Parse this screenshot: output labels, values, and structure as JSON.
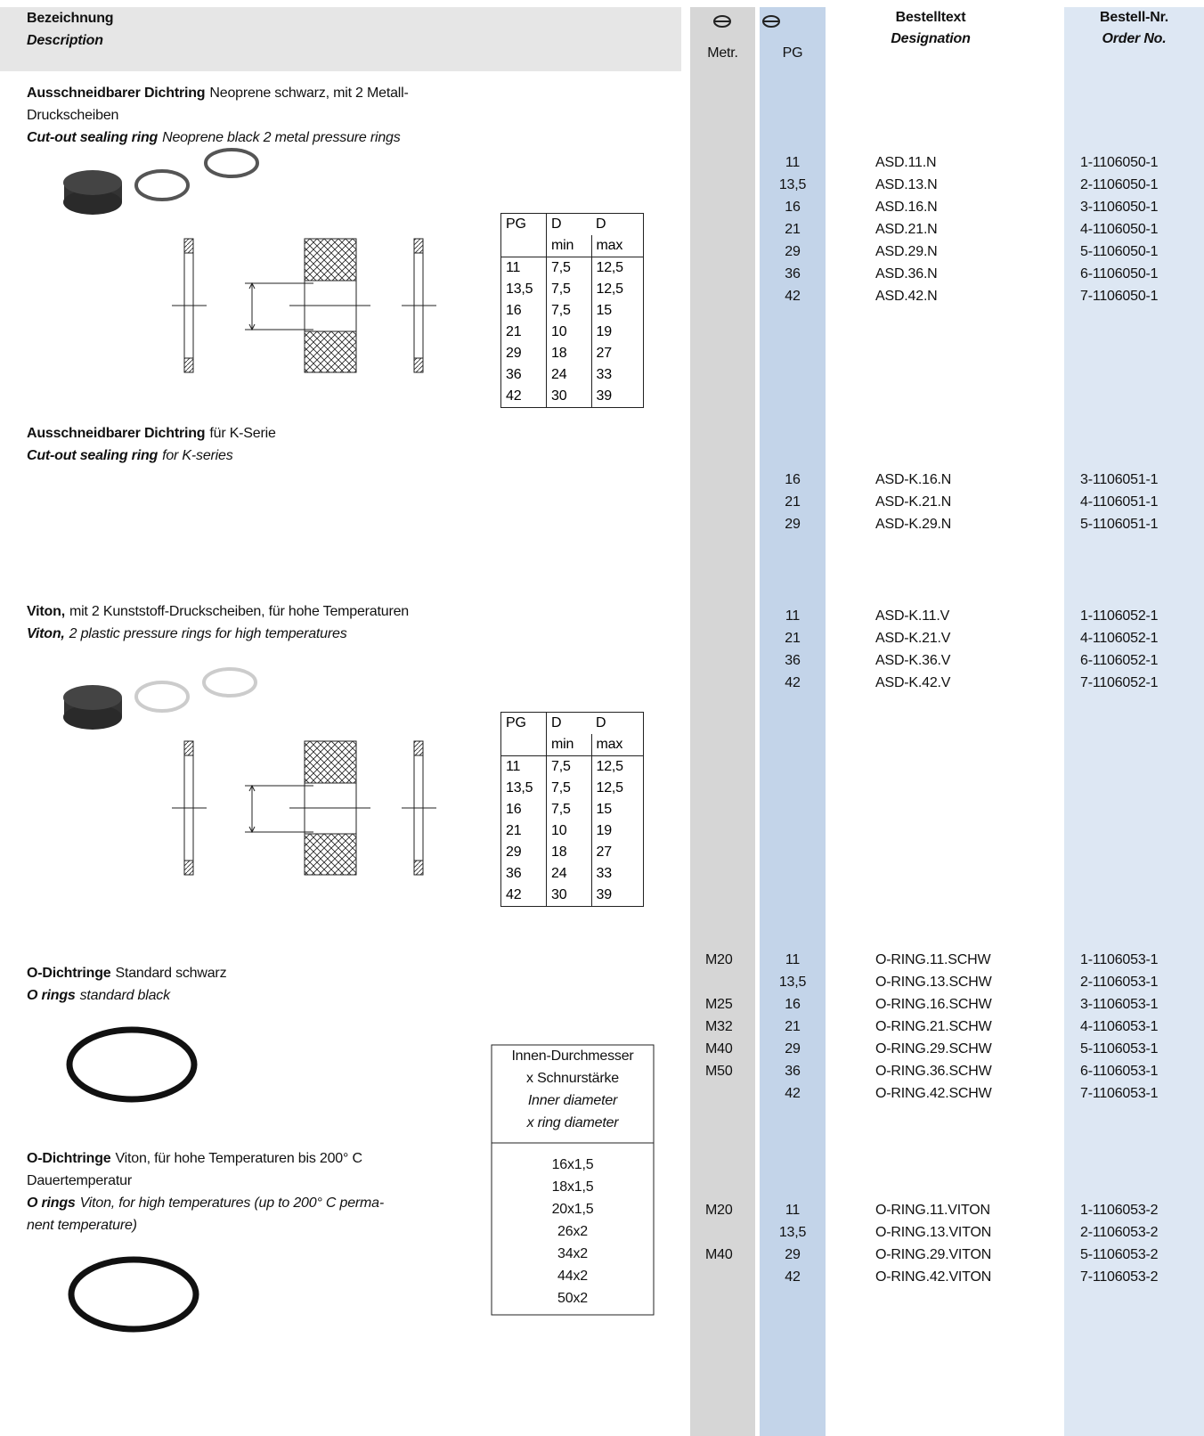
{
  "header": {
    "description_de": "Bezeichnung",
    "description_en": "Description",
    "metr": "Metr.",
    "pg": "PG",
    "designation_de": "Bestelltext",
    "designation_en": "Designation",
    "order_de": "Bestell-Nr.",
    "order_en": "Order No."
  },
  "sections": [
    {
      "title_de": {
        "bold": "Ausschneidbarer Dichtring",
        "lines": [
          "Neoprene schwarz, mit 2 Metall-Druckscheiben"
        ]
      },
      "title_en": {
        "bold": "Cut-out sealing ring",
        "lines": [
          "Neoprene black 2 metal pressure rings"
        ]
      },
      "rows": [
        {
          "metr": null,
          "pg": "11",
          "designation": "ASD.11.N",
          "order": "1-1106050-1"
        },
        {
          "metr": null,
          "pg": "13,5",
          "designation": "ASD.13.N",
          "order": "2-1106050-1"
        },
        {
          "metr": null,
          "pg": "16",
          "designation": "ASD.16.N",
          "order": "3-1106050-1"
        },
        {
          "metr": null,
          "pg": "21",
          "designation": "ASD.21.N",
          "order": "4-1106050-1"
        },
        {
          "metr": null,
          "pg": "29",
          "designation": "ASD.29.N",
          "order": "5-1106050-1"
        },
        {
          "metr": null,
          "pg": "36",
          "designation": "ASD.36.N",
          "order": "6-1106050-1"
        },
        {
          "metr": null,
          "pg": "42",
          "designation": "ASD.42.N",
          "order": "7-1106050-1"
        }
      ],
      "dimension_table": {
        "header": [
          "PG",
          "D",
          "D"
        ],
        "subheader": [
          "min",
          "max"
        ],
        "rows": [
          [
            "11",
            "7,5",
            "12,5"
          ],
          [
            "13,5",
            "7,5",
            "12,5"
          ],
          [
            "16",
            "7,5",
            "15"
          ],
          [
            "21",
            "10",
            "19"
          ],
          [
            "29",
            "18",
            "27"
          ],
          [
            "36",
            "24",
            "33"
          ],
          [
            "42",
            "30",
            "39"
          ]
        ]
      }
    },
    {
      "title_de": {
        "bold": "Ausschneidbarer Dichtring",
        "lines": [
          "für K-Serie"
        ]
      },
      "title_en": {
        "bold": "Cut-out sealing ring",
        "lines": [
          "for K-series"
        ]
      },
      "rows": [
        {
          "metr": null,
          "pg": "16",
          "designation": "ASD-K.16.N",
          "order": "3-1106051-1"
        },
        {
          "metr": null,
          "pg": "21",
          "designation": "ASD-K.21.N",
          "order": "4-1106051-1"
        },
        {
          "metr": null,
          "pg": "29",
          "designation": "ASD-K.29.N",
          "order": "5-1106051-1"
        }
      ]
    },
    {
      "title_de": {
        "bold": "Viton,",
        "lines": [
          "mit 2 Kunststoff-Druckscheiben, für hohe Temperaturen"
        ]
      },
      "title_en": {
        "bold": "Viton,",
        "lines": [
          "2 plastic pressure rings for high temperatures"
        ]
      },
      "rows": [
        {
          "metr": null,
          "pg": "11",
          "designation": "ASD-K.11.V",
          "order": "1-1106052-1"
        },
        {
          "metr": null,
          "pg": "21",
          "designation": "ASD-K.21.V",
          "order": "4-1106052-1"
        },
        {
          "metr": null,
          "pg": "36",
          "designation": "ASD-K.36.V",
          "order": "6-1106052-1"
        },
        {
          "metr": null,
          "pg": "42",
          "designation": "ASD-K.42.V",
          "order": "7-1106052-1"
        }
      ],
      "dimension_table": {
        "header": [
          "PG",
          "D",
          "D"
        ],
        "subheader": [
          "min",
          "max"
        ],
        "rows": [
          [
            "11",
            "7,5",
            "12,5"
          ],
          [
            "13,5",
            "7,5",
            "12,5"
          ],
          [
            "16",
            "7,5",
            "15"
          ],
          [
            "21",
            "10",
            "19"
          ],
          [
            "29",
            "18",
            "27"
          ],
          [
            "36",
            "24",
            "33"
          ],
          [
            "42",
            "30",
            "39"
          ]
        ]
      }
    },
    {
      "title_de": {
        "bold": "O-Dichtringe",
        "lines": [
          "Standard schwarz"
        ]
      },
      "title_en": {
        "bold": "O rings",
        "lines": [
          "standard black"
        ]
      },
      "rows": [
        {
          "metr": "M20",
          "pg": "11",
          "designation": "O-RING.11.SCHW",
          "order": "1-1106053-1"
        },
        {
          "metr": null,
          "pg": "13,5",
          "designation": "O-RING.13.SCHW",
          "order": "2-1106053-1"
        },
        {
          "metr": "M25",
          "pg": "16",
          "designation": "O-RING.16.SCHW",
          "order": "3-1106053-1"
        },
        {
          "metr": "M32",
          "pg": "21",
          "designation": "O-RING.21.SCHW",
          "order": "4-1106053-1"
        },
        {
          "metr": "M40",
          "pg": "29",
          "designation": "O-RING.29.SCHW",
          "order": "5-1106053-1"
        },
        {
          "metr": "M50",
          "pg": "36",
          "designation": "O-RING.36.SCHW",
          "order": "6-1106053-1"
        },
        {
          "metr": null,
          "pg": "42",
          "designation": "O-RING.42.SCHW",
          "order": "7-1106053-1"
        }
      ]
    },
    {
      "title_de": {
        "bold": "O-Dichtringe",
        "lines": [
          "Viton, für hohe Temperaturen bis 200° C",
          "Dauertemperatur"
        ]
      },
      "title_en": {
        "bold": "O rings",
        "lines": [
          "Viton, for high temperatures (up to 200° C perma-",
          "nent temperature)"
        ]
      },
      "rows": [
        {
          "metr": "M20",
          "pg": "11",
          "designation": "O-RING.11.VITON",
          "order": "1-1106053-2"
        },
        {
          "metr": null,
          "pg": "13,5",
          "designation": "O-RING.13.VITON",
          "order": "2-1106053-2"
        },
        {
          "metr": "M40",
          "pg": "29",
          "designation": "O-RING.29.VITON",
          "order": "5-1106053-2"
        },
        {
          "metr": null,
          "pg": "42",
          "designation": "O-RING.42.VITON",
          "order": "7-1106053-2"
        }
      ]
    }
  ],
  "size_table": {
    "header": [
      "Innen-Durchmesser",
      "x Schnurstärke",
      "Inner diameter",
      "x ring diameter"
    ],
    "values": [
      "16x1,5",
      "18x1,5",
      "20x1,5",
      "26x2",
      "34x2",
      "44x2",
      "50x2"
    ]
  }
}
